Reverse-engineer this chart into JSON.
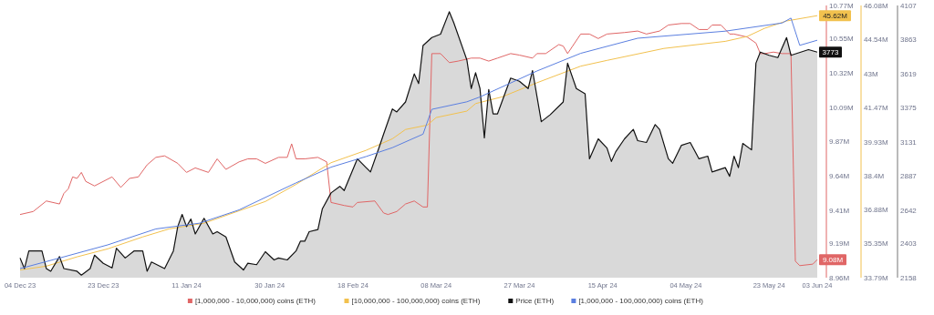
{
  "chart_data": {
    "type": "line",
    "legend": "bottom",
    "xlim": [
      "2023-12-04",
      "2024-06-03"
    ],
    "xticks": [
      {
        "value": "2023-12-04",
        "label": "04 Dec 23"
      },
      {
        "value": "2023-12-23",
        "label": "23 Dec 23"
      },
      {
        "value": "2024-01-11",
        "label": "11 Jan 24"
      },
      {
        "value": "2024-01-30",
        "label": "30 Jan 24"
      },
      {
        "value": "2024-02-18",
        "label": "18 Feb 24"
      },
      {
        "value": "2024-03-08",
        "label": "08 Mar 24"
      },
      {
        "value": "2024-03-27",
        "label": "27 Mar 24"
      },
      {
        "value": "2024-04-15",
        "label": "15 Apr 24"
      },
      {
        "value": "2024-05-04",
        "label": "04 May 24"
      },
      {
        "value": "2024-05-23",
        "label": "23 May 24"
      },
      {
        "value": "2024-06-03",
        "label": "03 Jun 24"
      }
    ],
    "ylim": [
      2158,
      4107
    ],
    "yticks": [
      2158,
      2403,
      2642,
      2887,
      3131,
      3375,
      3619,
      3863,
      4107
    ],
    "y2lim": [
      8.96,
      10.77
    ],
    "y2ticks": [
      {
        "value": 8.96,
        "label": "8.96M"
      },
      {
        "value": 9.19,
        "label": "9.19M"
      },
      {
        "value": 9.41,
        "label": "9.41M"
      },
      {
        "value": 9.64,
        "label": "9.64M"
      },
      {
        "value": 9.87,
        "label": "9.87M"
      },
      {
        "value": 10.09,
        "label": "10.09M"
      },
      {
        "value": 10.32,
        "label": "10.32M"
      },
      {
        "value": 10.55,
        "label": "10.55M"
      },
      {
        "value": 10.77,
        "label": "10.77M"
      }
    ],
    "y3lim": [
      33.79,
      46.08
    ],
    "y3ticks": [
      {
        "value": 33.79,
        "label": "33.79M"
      },
      {
        "value": 35.35,
        "label": "35.35M"
      },
      {
        "value": 36.88,
        "label": "36.88M"
      },
      {
        "value": 38.4,
        "label": "38.4M"
      },
      {
        "value": 39.93,
        "label": "39.93M"
      },
      {
        "value": 41.47,
        "label": "41.47M"
      },
      {
        "value": 43,
        "label": "43M"
      },
      {
        "value": 44.54,
        "label": "44.54M"
      },
      {
        "value": 46.08,
        "label": "46.08M"
      }
    ],
    "series": [
      {
        "name": "[1,000,000 - 10,000,000) coins (ETH)",
        "color": "#e06666",
        "axis": "y2",
        "x": [
          "2023-12-04",
          "2023-12-07",
          "2023-12-10",
          "2023-12-13",
          "2023-12-14",
          "2023-12-15",
          "2023-12-16",
          "2023-12-17",
          "2023-12-18",
          "2023-12-19",
          "2023-12-21",
          "2023-12-25",
          "2023-12-27",
          "2023-12-29",
          "2023-12-31",
          "2024-01-02",
          "2024-01-04",
          "2024-01-06",
          "2024-01-09",
          "2024-01-11",
          "2024-01-13",
          "2024-01-16",
          "2024-01-18",
          "2024-01-20",
          "2024-01-23",
          "2024-01-25",
          "2024-01-27",
          "2024-01-29",
          "2024-02-01",
          "2024-02-03",
          "2024-02-04",
          "2024-02-05",
          "2024-02-07",
          "2024-02-10",
          "2024-02-12",
          "2024-02-13",
          "2024-02-16",
          "2024-02-18",
          "2024-02-19",
          "2024-02-23",
          "2024-02-25",
          "2024-02-26",
          "2024-02-28",
          "2024-03-01",
          "2024-03-03",
          "2024-03-05",
          "2024-03-06",
          "2024-03-07",
          "2024-03-09",
          "2024-03-11",
          "2024-03-13",
          "2024-03-16",
          "2024-03-18",
          "2024-03-20",
          "2024-03-22",
          "2024-03-25",
          "2024-03-27",
          "2024-03-30",
          "2024-03-31",
          "2024-04-02",
          "2024-04-05",
          "2024-04-06",
          "2024-04-07",
          "2024-04-10",
          "2024-04-12",
          "2024-04-14",
          "2024-04-16",
          "2024-04-20",
          "2024-04-23",
          "2024-04-25",
          "2024-04-28",
          "2024-04-30",
          "2024-05-03",
          "2024-05-05",
          "2024-05-07",
          "2024-05-09",
          "2024-05-10",
          "2024-05-12",
          "2024-05-14",
          "2024-05-15",
          "2024-05-18",
          "2024-05-20",
          "2024-05-21",
          "2024-05-22",
          "2024-05-24",
          "2024-05-26",
          "2024-05-28",
          "2024-05-29",
          "2024-05-30",
          "2024-06-02",
          "2024-06-03"
        ],
        "values": [
          9.38,
          9.4,
          9.47,
          9.45,
          9.52,
          9.55,
          9.63,
          9.62,
          9.66,
          9.6,
          9.57,
          9.63,
          9.56,
          9.62,
          9.63,
          9.71,
          9.76,
          9.77,
          9.72,
          9.66,
          9.69,
          9.66,
          9.75,
          9.68,
          9.73,
          9.75,
          9.75,
          9.72,
          9.76,
          9.76,
          9.85,
          9.75,
          9.75,
          9.76,
          9.73,
          9.46,
          9.44,
          9.43,
          9.46,
          9.47,
          9.39,
          9.38,
          9.4,
          9.45,
          9.47,
          9.43,
          9.43,
          10.45,
          10.45,
          10.39,
          10.4,
          10.42,
          10.42,
          10.4,
          10.42,
          10.45,
          10.44,
          10.42,
          10.45,
          10.45,
          10.51,
          10.5,
          10.45,
          10.58,
          10.58,
          10.55,
          10.58,
          10.59,
          10.6,
          10.58,
          10.6,
          10.64,
          10.65,
          10.65,
          10.61,
          10.61,
          10.64,
          10.64,
          10.58,
          10.58,
          10.56,
          10.52,
          10.45,
          10.45,
          10.46,
          10.45,
          10.45,
          9.07,
          9.04,
          9.05,
          9.08
        ],
        "value_labels": [
          null,
          null,
          null,
          null,
          null,
          null,
          null,
          null,
          null,
          null,
          null,
          null,
          null,
          null,
          null,
          null,
          null,
          null,
          null,
          null,
          null,
          null,
          null,
          null,
          null,
          null,
          null,
          null,
          null,
          null,
          null,
          null,
          null,
          null,
          null,
          null,
          null,
          null,
          null,
          null,
          null,
          null,
          null,
          null,
          null,
          null,
          null,
          null,
          null,
          null,
          null,
          null,
          null,
          null,
          null,
          null,
          null,
          null,
          null,
          null,
          null,
          null,
          null,
          null,
          null,
          null,
          null,
          null,
          null,
          null,
          null,
          null,
          null,
          null,
          null,
          null,
          null,
          null,
          null,
          null,
          null,
          null,
          null,
          null,
          null,
          null,
          null,
          null,
          null,
          null,
          "9.08M"
        ]
      },
      {
        "name": "[10,000,000 - 100,000,000) coins (ETH)",
        "color": "#f2c14e",
        "axis": "y3",
        "x": [
          "2023-12-04",
          "2023-12-10",
          "2023-12-17",
          "2023-12-24",
          "2024-01-01",
          "2024-01-07",
          "2024-01-15",
          "2024-01-23",
          "2024-01-29",
          "2024-02-05",
          "2024-02-13",
          "2024-02-21",
          "2024-02-27",
          "2024-03-01",
          "2024-03-06",
          "2024-03-08",
          "2024-03-15",
          "2024-03-17",
          "2024-03-23",
          "2024-03-31",
          "2024-04-10",
          "2024-04-16",
          "2024-04-29",
          "2024-05-13",
          "2024-05-18",
          "2024-05-22",
          "2024-05-27",
          "2024-06-03"
        ],
        "values": [
          34.14,
          34.31,
          34.73,
          35.09,
          35.63,
          35.99,
          36.25,
          36.81,
          37.23,
          38.0,
          38.98,
          39.54,
          40.06,
          40.48,
          40.68,
          41.02,
          41.31,
          41.65,
          41.95,
          42.59,
          43.34,
          43.6,
          44.14,
          44.46,
          44.68,
          45.05,
          45.38,
          45.62
        ],
        "value_labels": [
          null,
          null,
          null,
          null,
          null,
          null,
          null,
          null,
          null,
          null,
          null,
          null,
          null,
          null,
          null,
          null,
          null,
          null,
          null,
          null,
          null,
          null,
          null,
          null,
          null,
          null,
          null,
          "45.62M"
        ]
      },
      {
        "name": "Price (ETH)",
        "type": "area",
        "color": "#111111",
        "axis": "y",
        "x": [
          "2023-12-04",
          "2023-12-05",
          "2023-12-06",
          "2023-12-09",
          "2023-12-10",
          "2023-12-11",
          "2023-12-13",
          "2023-12-14",
          "2023-12-17",
          "2023-12-18",
          "2023-12-20",
          "2023-12-21",
          "2023-12-23",
          "2023-12-25",
          "2023-12-26",
          "2023-12-28",
          "2023-12-30",
          "2024-01-01",
          "2024-01-02",
          "2024-01-03",
          "2024-01-06",
          "2024-01-08",
          "2024-01-09",
          "2024-01-10",
          "2024-01-11",
          "2024-01-12",
          "2024-01-13",
          "2024-01-15",
          "2024-01-17",
          "2024-01-18",
          "2024-01-20",
          "2024-01-22",
          "2024-01-24",
          "2024-01-25",
          "2024-01-27",
          "2024-01-29",
          "2024-01-31",
          "2024-02-01",
          "2024-02-03",
          "2024-02-05",
          "2024-02-06",
          "2024-02-07",
          "2024-02-08",
          "2024-02-10",
          "2024-02-11",
          "2024-02-13",
          "2024-02-15",
          "2024-02-16",
          "2024-02-19",
          "2024-02-21",
          "2024-02-22",
          "2024-02-24",
          "2024-02-25",
          "2024-02-27",
          "2024-02-28",
          "2024-03-01",
          "2024-03-03",
          "2024-03-04",
          "2024-03-05",
          "2024-03-07",
          "2024-03-09",
          "2024-03-11",
          "2024-03-12",
          "2024-03-15",
          "2024-03-16",
          "2024-03-17",
          "2024-03-18",
          "2024-03-19",
          "2024-03-20",
          "2024-03-21",
          "2024-03-22",
          "2024-03-25",
          "2024-03-27",
          "2024-03-29",
          "2024-03-30",
          "2024-04-01",
          "2024-04-03",
          "2024-04-06",
          "2024-04-07",
          "2024-04-09",
          "2024-04-11",
          "2024-04-12",
          "2024-04-14",
          "2024-04-16",
          "2024-04-17",
          "2024-04-18",
          "2024-04-20",
          "2024-04-22",
          "2024-04-23",
          "2024-04-25",
          "2024-04-27",
          "2024-04-28",
          "2024-04-30",
          "2024-05-01",
          "2024-05-03",
          "2024-05-05",
          "2024-05-07",
          "2024-05-09",
          "2024-05-10",
          "2024-05-13",
          "2024-05-14",
          "2024-05-15",
          "2024-05-16",
          "2024-05-17",
          "2024-05-19",
          "2024-05-20",
          "2024-05-21",
          "2024-05-23",
          "2024-05-25",
          "2024-05-27",
          "2024-05-28",
          "2024-06-01",
          "2024-06-03"
        ],
        "values": [
          2299,
          2223,
          2349,
          2349,
          2223,
          2204,
          2309,
          2223,
          2204,
          2176,
          2223,
          2319,
          2261,
          2228,
          2369,
          2299,
          2349,
          2349,
          2204,
          2270,
          2223,
          2349,
          2524,
          2611,
          2524,
          2578,
          2471,
          2583,
          2471,
          2487,
          2450,
          2270,
          2213,
          2261,
          2251,
          2344,
          2285,
          2299,
          2285,
          2349,
          2419,
          2419,
          2487,
          2503,
          2650,
          2765,
          2812,
          2782,
          3009,
          2946,
          2915,
          3093,
          3186,
          3366,
          3345,
          3416,
          3617,
          3548,
          3820,
          3877,
          3902,
          4062,
          3985,
          3718,
          3512,
          3625,
          3512,
          3159,
          3505,
          3331,
          3331,
          3587,
          3564,
          3512,
          3641,
          3275,
          3324,
          3416,
          3694,
          3512,
          3475,
          3009,
          3152,
          3086,
          2990,
          3060,
          3152,
          3220,
          3139,
          3126,
          3254,
          3220,
          3009,
          2977,
          3106,
          3126,
          3009,
          3028,
          2915,
          2946,
          2884,
          3028,
          2946,
          3119,
          3073,
          3694,
          3773,
          3750,
          3734,
          3877,
          3750,
          3791,
          3773
        ],
        "value_labels": [
          null,
          null,
          null,
          null,
          null,
          null,
          null,
          null,
          null,
          null,
          null,
          null,
          null,
          null,
          null,
          null,
          null,
          null,
          null,
          null,
          null,
          null,
          null,
          null,
          null,
          null,
          null,
          null,
          null,
          null,
          null,
          null,
          null,
          null,
          null,
          null,
          null,
          null,
          null,
          null,
          null,
          null,
          null,
          null,
          null,
          null,
          null,
          null,
          null,
          null,
          null,
          null,
          null,
          null,
          null,
          null,
          null,
          null,
          null,
          null,
          null,
          null,
          null,
          null,
          null,
          null,
          null,
          null,
          null,
          null,
          null,
          null,
          null,
          null,
          null,
          null,
          null,
          null,
          null,
          null,
          null,
          null,
          null,
          null,
          null,
          null,
          null,
          null,
          null,
          null,
          null,
          null,
          null,
          null,
          null,
          null,
          null,
          null,
          null,
          null,
          null,
          null,
          null,
          null,
          null,
          null,
          null,
          null,
          null,
          null,
          null,
          null,
          "3773"
        ]
      },
      {
        "name": "[1,000,000 - 100,000,000) coins (ETH)",
        "color": "#5b7fe0",
        "axis": "y3",
        "x": [
          "2023-12-04",
          "2023-12-14",
          "2023-12-24",
          "2024-01-04",
          "2024-01-14",
          "2024-01-23",
          "2024-02-05",
          "2024-02-13",
          "2024-02-21",
          "2024-02-27",
          "2024-03-05",
          "2024-03-07",
          "2024-03-15",
          "2024-03-18",
          "2024-03-31",
          "2024-04-10",
          "2024-04-23",
          "2024-05-13",
          "2024-05-26",
          "2024-05-28",
          "2024-05-30",
          "2024-06-03"
        ],
        "values": [
          34.2,
          34.73,
          35.27,
          35.99,
          36.25,
          36.85,
          38.07,
          38.78,
          39.26,
          39.66,
          40.27,
          41.39,
          41.73,
          41.95,
          43.12,
          43.92,
          44.6,
          44.92,
          45.29,
          45.51,
          44.28,
          44.51
        ]
      }
    ]
  }
}
